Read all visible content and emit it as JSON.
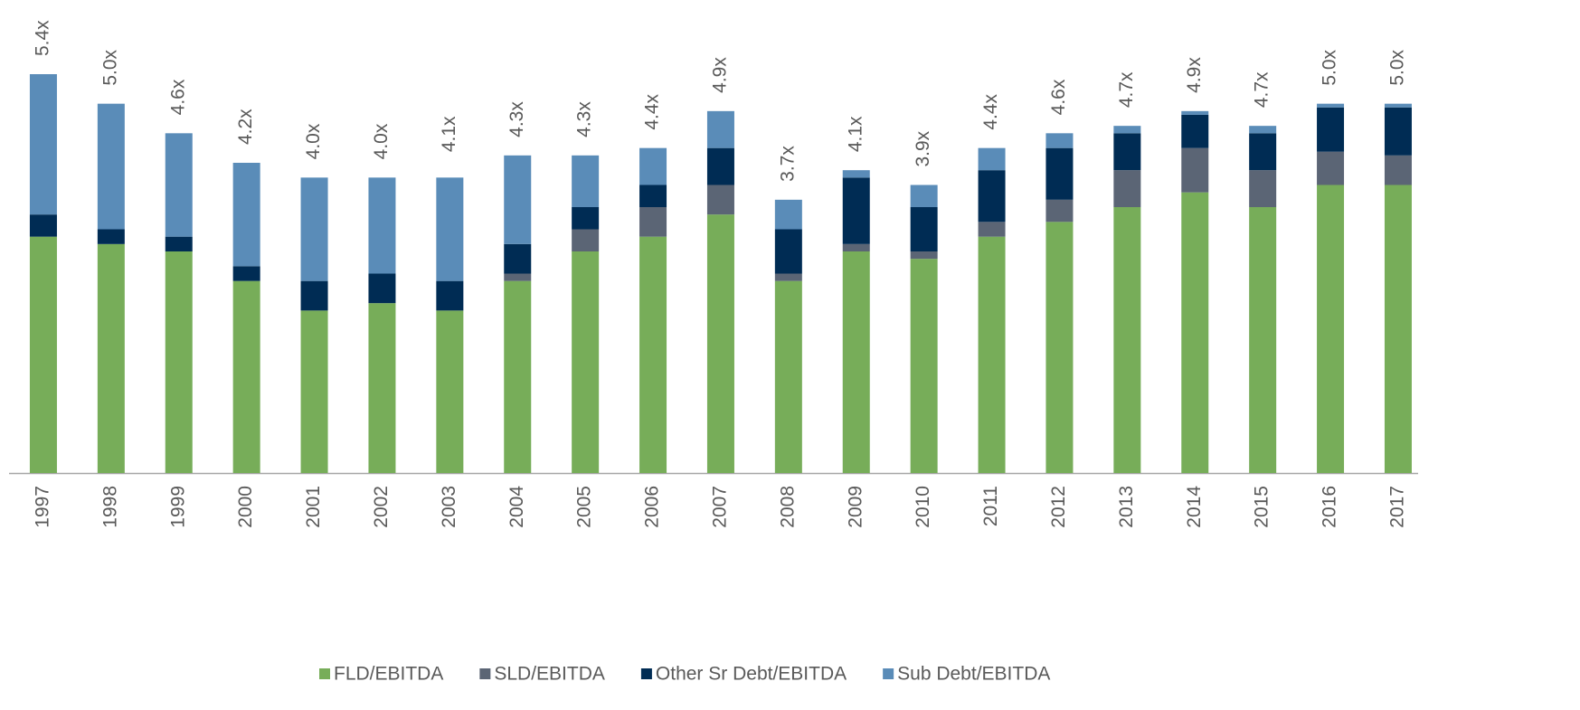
{
  "chart_data": {
    "type": "stacked_bar",
    "categories": [
      "1997",
      "1998",
      "1999",
      "2000",
      "2001",
      "2002",
      "2003",
      "2004",
      "2005",
      "2006",
      "2007",
      "2008",
      "2009",
      "2010",
      "2011",
      "2012",
      "2013",
      "2014",
      "2015",
      "2016",
      "2017"
    ],
    "series": [
      {
        "name": "FLD/EBITDA",
        "color": "#77ad59",
        "values": [
          3.2,
          3.1,
          3.0,
          2.6,
          2.2,
          2.3,
          2.2,
          2.6,
          3.0,
          3.2,
          3.5,
          2.6,
          3.0,
          2.9,
          3.2,
          3.4,
          3.6,
          3.8,
          3.6,
          3.9,
          3.9
        ]
      },
      {
        "name": "SLD/EBITDA",
        "color": "#5b6575",
        "values": [
          0,
          0,
          0,
          0,
          0,
          0,
          0,
          0.1,
          0.3,
          0.4,
          0.4,
          0.1,
          0.1,
          0.1,
          0.2,
          0.3,
          0.5,
          0.6,
          0.5,
          0.45,
          0.4
        ]
      },
      {
        "name": "Other Sr Debt/EBITDA",
        "color": "#002c54",
        "values": [
          0.3,
          0.2,
          0.2,
          0.2,
          0.4,
          0.4,
          0.4,
          0.4,
          0.3,
          0.3,
          0.5,
          0.6,
          0.9,
          0.6,
          0.7,
          0.7,
          0.5,
          0.45,
          0.5,
          0.6,
          0.65
        ]
      },
      {
        "name": "Sub Debt/EBITDA",
        "color": "#5a8cb8",
        "values": [
          1.9,
          1.7,
          1.4,
          1.4,
          1.4,
          1.3,
          1.4,
          1.2,
          0.7,
          0.5,
          0.5,
          0.4,
          0.1,
          0.3,
          0.3,
          0.2,
          0.1,
          0.05,
          0.1,
          0.05,
          0.05
        ]
      }
    ],
    "totals": [
      5.4,
      5.0,
      4.6,
      4.2,
      4.0,
      4.0,
      4.1,
      4.3,
      4.3,
      4.4,
      4.9,
      3.7,
      4.1,
      3.9,
      4.4,
      4.6,
      4.7,
      4.9,
      4.7,
      5.0,
      5.0
    ],
    "total_labels": [
      "5.4x",
      "5.0x",
      "4.6x",
      "4.2x",
      "4.0x",
      "4.0x",
      "4.1x",
      "4.3x",
      "4.3x",
      "4.4x",
      "4.9x",
      "3.7x",
      "4.1x",
      "3.9x",
      "4.4x",
      "4.6x",
      "4.7x",
      "4.9x",
      "4.7x",
      "5.0x",
      "5.0x"
    ],
    "ylim": [
      0,
      5.4
    ],
    "legend": "bottom"
  }
}
